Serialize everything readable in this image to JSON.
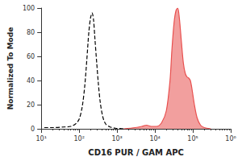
{
  "chart_data": {
    "type": "line",
    "x_label": "CD16 PUR / GAM APC",
    "y_label": "Normalized To Mode",
    "log": "x",
    "xlim": [
      10,
      1000000
    ],
    "xticks": [
      {
        "value": 10,
        "label": "10¹"
      },
      {
        "value": 100,
        "label": "10²"
      },
      {
        "value": 1000,
        "label": "10³"
      },
      {
        "value": 10000,
        "label": "10⁴"
      },
      {
        "value": 100000,
        "label": "10⁵"
      },
      {
        "value": 1000000,
        "label": "10⁶"
      }
    ],
    "ylim": [
      0,
      100
    ],
    "yticks": [
      0,
      20,
      40,
      60,
      80,
      100
    ],
    "grid": false,
    "series": [
      {
        "color": "#000000",
        "line_style": "dashed",
        "marker": "none",
        "x": [
          12,
          20,
          40,
          60,
          80,
          100,
          120,
          140,
          160,
          180,
          200,
          220,
          240,
          260,
          290,
          320,
          360,
          420,
          500,
          650,
          900,
          1500
        ],
        "values": [
          1,
          1,
          1.5,
          2,
          4,
          8,
          18,
          35,
          58,
          80,
          92,
          96,
          90,
          75,
          55,
          38,
          22,
          10,
          4,
          1.5,
          0.5,
          0
        ]
      },
      {
        "color": "#e8504f",
        "line_style": "solid",
        "type": "area",
        "marker": "none",
        "x": [
          1500,
          3000,
          4500,
          6000,
          8000,
          11000,
          15000,
          20000,
          25000,
          28000,
          32000,
          36000,
          40000,
          44000,
          50000,
          56000,
          63000,
          70000,
          78000,
          86000,
          95000,
          110000,
          130000,
          160000,
          200000,
          300000
        ],
        "values": [
          0,
          1,
          2,
          3,
          2,
          2,
          5,
          15,
          40,
          65,
          88,
          98,
          100,
          92,
          72,
          55,
          46,
          43,
          42,
          40,
          33,
          20,
          9,
          3,
          1,
          0
        ]
      }
    ]
  }
}
